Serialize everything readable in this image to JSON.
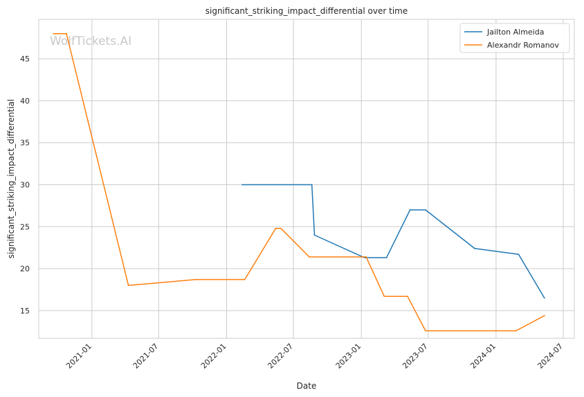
{
  "chart_data": {
    "type": "line",
    "title": "significant_striking_impact_differential over time",
    "xlabel": "Date",
    "ylabel": "significant_striking_impact_differential",
    "watermark": "WolfTickets.AI",
    "grid": true,
    "legend_position": "top-right",
    "xlim": [
      "2020-08-10",
      "2024-07-31"
    ],
    "ylim": [
      11.7,
      49.7
    ],
    "x_ticks": [
      "2021-01",
      "2021-07",
      "2022-01",
      "2022-07",
      "2023-01",
      "2023-07",
      "2024-01",
      "2024-07"
    ],
    "y_ticks": [
      15,
      20,
      25,
      30,
      35,
      40,
      45
    ],
    "series": [
      {
        "name": "Jailton Almeida",
        "color": "#1f77b4",
        "points": [
          {
            "x": "2022-02-12",
            "y": 30.0
          },
          {
            "x": "2022-08-20",
            "y": 30.0
          },
          {
            "x": "2022-08-27",
            "y": 24.0
          },
          {
            "x": "2023-01-10",
            "y": 21.3
          },
          {
            "x": "2023-03-10",
            "y": 21.3
          },
          {
            "x": "2023-05-13",
            "y": 27.0
          },
          {
            "x": "2023-06-24",
            "y": 27.0
          },
          {
            "x": "2023-11-04",
            "y": 22.4
          },
          {
            "x": "2024-03-02",
            "y": 21.7
          },
          {
            "x": "2024-05-11",
            "y": 16.5
          }
        ]
      },
      {
        "name": "Alexandr Romanov",
        "color": "#ff7f0e",
        "points": [
          {
            "x": "2020-09-19",
            "y": 48.0
          },
          {
            "x": "2020-10-24",
            "y": 48.0
          },
          {
            "x": "2021-04-10",
            "y": 18.0
          },
          {
            "x": "2021-10-09",
            "y": 18.7
          },
          {
            "x": "2022-02-19",
            "y": 18.7
          },
          {
            "x": "2022-05-14",
            "y": 24.8
          },
          {
            "x": "2022-05-28",
            "y": 24.8
          },
          {
            "x": "2022-08-13",
            "y": 21.4
          },
          {
            "x": "2023-01-14",
            "y": 21.4
          },
          {
            "x": "2023-03-04",
            "y": 16.7
          },
          {
            "x": "2023-05-06",
            "y": 16.7
          },
          {
            "x": "2023-06-24",
            "y": 12.6
          },
          {
            "x": "2024-02-24",
            "y": 12.6
          },
          {
            "x": "2024-05-11",
            "y": 14.4
          }
        ]
      }
    ]
  }
}
